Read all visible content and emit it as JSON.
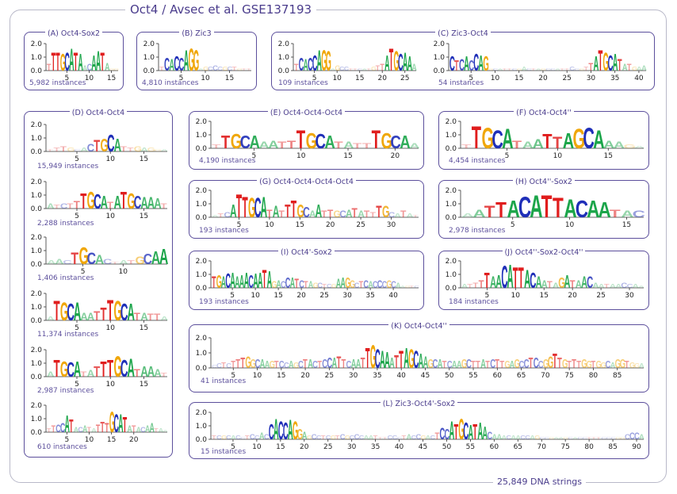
{
  "title": "Oct4 / Avsec et al. GSE137193",
  "footer": "25,849 DNA strings",
  "colors": {
    "A": "#1ca54a",
    "C": "#1f2fb8",
    "G": "#f0a70a",
    "T": "#e01d1d",
    "frame": "#5c4f9c",
    "text": "#4a3c8c"
  },
  "y_ticks": [
    "2.0",
    "1.0",
    "0.0"
  ],
  "panels": [
    {
      "title": "(A) Oct4-Sox2",
      "logos": [
        {
          "instances": "5,982 instances",
          "ticks": [
            "5",
            "10",
            "15"
          ],
          "length": 16,
          "seq": "TTTGCATAACAATAGG",
          "heights": [
            0.5,
            1.4,
            1.4,
            1.3,
            1.4,
            1.7,
            1.4,
            1.3,
            0.4,
            0.5,
            1.2,
            1.5,
            1.4,
            0.6,
            0.2,
            0.2
          ]
        }
      ]
    },
    {
      "title": "(B) Zic3",
      "logos": [
        {
          "instances": "4,810 instances",
          "ticks": [
            "5",
            "10",
            "15"
          ],
          "length": 19,
          "seq": "TCACCAGGAGCCCGCTGTT",
          "heights": [
            0.3,
            1.0,
            0.9,
            1.1,
            1.0,
            1.6,
            1.7,
            1.6,
            0.2,
            0.3,
            0.3,
            0.4,
            0.3,
            0.3,
            0.3,
            0.3,
            0.2,
            0.2,
            0.2
          ]
        }
      ]
    },
    {
      "title": "(C) Zic3-Oct4",
      "logos": [
        {
          "instances": "109 instances",
          "ticks": [
            "5",
            "10",
            "15",
            "20",
            "25"
          ],
          "length": 27,
          "seq": "TCACCAGGAGCCTTCATGTTATGCAAA",
          "heights": [
            0.5,
            1.0,
            0.9,
            1.0,
            1.2,
            1.6,
            1.6,
            1.5,
            0.2,
            0.4,
            0.3,
            0.3,
            0.2,
            0.2,
            0.2,
            0.2,
            0.2,
            0.3,
            0.4,
            0.5,
            1.2,
            1.7,
            1.5,
            1.3,
            1.4,
            1.1,
            0.5
          ]
        },
        {
          "instances": "54 instances",
          "ticks": [
            "5",
            "10",
            "15",
            "20",
            "25",
            "30",
            "35",
            "40"
          ],
          "length": 41,
          "seq": "CTCACCAGGCATTCGACTAGCCATTCCGTTATGCATATGAA",
          "heights": [
            1.1,
            0.8,
            0.9,
            1.1,
            0.8,
            1.3,
            1.2,
            1.1,
            0.2,
            0.2,
            0.2,
            0.2,
            0.2,
            0.2,
            0.2,
            0.3,
            0.2,
            0.2,
            0.2,
            0.2,
            0.2,
            0.2,
            0.2,
            0.2,
            0.2,
            0.3,
            0.2,
            0.2,
            0.3,
            0.6,
            1.1,
            1.6,
            1.4,
            1.2,
            1.3,
            0.9,
            0.5,
            0.5,
            0.3,
            0.3,
            0.4
          ]
        }
      ]
    },
    {
      "title": "(D) Oct4-Oct4",
      "logos": [
        {
          "instances": "15,949 instances",
          "ticks": [
            "5",
            "10",
            "15"
          ],
          "length": 18,
          "seq": "TTTGCACTGCATTGAGGA",
          "heights": [
            0.2,
            0.3,
            0.4,
            0.3,
            0.2,
            0.3,
            0.6,
            0.9,
            1.0,
            1.3,
            1.0,
            0.4,
            0.3,
            0.4,
            0.3,
            0.3,
            0.2,
            0.2
          ]
        },
        {
          "instances": "2,288 instances",
          "ticks": [
            "5",
            "10",
            "15"
          ],
          "length": 18,
          "seq": "ATCTTTGCATATGCAAAT",
          "heights": [
            0.4,
            0.3,
            0.4,
            0.4,
            0.6,
            1.2,
            1.3,
            1.1,
            1.0,
            0.5,
            1.0,
            1.3,
            1.2,
            1.0,
            0.9,
            0.9,
            0.8,
            0.4
          ]
        },
        {
          "instances": "1,406 instances",
          "ticks": [
            "5",
            "10"
          ],
          "length": 15,
          "seq": "AACTGCACTATGCAA",
          "heights": [
            0.3,
            0.4,
            0.3,
            0.9,
            1.3,
            0.9,
            0.7,
            0.4,
            0.2,
            0.3,
            0.3,
            0.6,
            0.8,
            1.0,
            1.2
          ]
        },
        {
          "instances": "11,374 instances",
          "ticks": [
            "5",
            "10",
            "15"
          ],
          "length": 18,
          "seq": "ATGCAAATTTGCATATTA",
          "heights": [
            0.3,
            1.5,
            1.4,
            1.3,
            1.4,
            0.6,
            0.6,
            0.7,
            1.0,
            1.6,
            1.5,
            1.3,
            1.3,
            0.6,
            0.6,
            0.5,
            0.5,
            0.3
          ]
        },
        {
          "instances": "2,987 instances",
          "ticks": [
            "5",
            "10",
            "15"
          ],
          "length": 18,
          "seq": "ATGCATATTTGCATAAAT",
          "heights": [
            0.4,
            1.3,
            1.2,
            1.1,
            1.2,
            0.4,
            0.5,
            0.8,
            1.2,
            1.3,
            1.6,
            1.3,
            1.4,
            0.6,
            0.8,
            0.8,
            0.6,
            0.3
          ]
        },
        {
          "instances": "610 instances",
          "ticks": [
            "5",
            "10",
            "15",
            "20"
          ],
          "length": 27,
          "seq": "TTCCATACATATTTGCATATACAATAA",
          "heights": [
            0.3,
            0.5,
            0.6,
            0.7,
            1.3,
            1.0,
            0.4,
            0.4,
            0.5,
            0.4,
            0.3,
            0.6,
            0.8,
            0.7,
            1.6,
            1.4,
            1.4,
            1.2,
            0.5,
            0.5,
            0.4,
            0.4,
            0.5,
            0.7,
            0.3,
            0.3,
            0.2
          ]
        }
      ]
    },
    {
      "title": "(E) Oct4-Oct4-Oct4",
      "logos": [
        {
          "instances": "4,190 instances",
          "ticks": [
            "5",
            "10",
            "15",
            "20"
          ],
          "length": 22,
          "seq": "TTGCAAATTTGCATATTTGCAA",
          "heights": [
            0.3,
            1.0,
            1.1,
            1.0,
            1.0,
            0.5,
            0.6,
            0.5,
            0.6,
            1.4,
            1.2,
            1.1,
            1.0,
            0.5,
            0.5,
            0.4,
            0.4,
            1.4,
            1.2,
            1.0,
            1.0,
            0.4
          ]
        }
      ]
    },
    {
      "title": "(F) Oct4-Oct4''",
      "logos": [
        {
          "instances": "4,454 instances",
          "ticks": [
            "5",
            "10",
            "15"
          ],
          "length": 18,
          "seq": "TTGCATAATTAGCAAAGA",
          "heights": [
            0.3,
            1.7,
            1.6,
            1.4,
            1.5,
            0.6,
            0.5,
            0.7,
            1.1,
            0.9,
            1.2,
            1.5,
            1.6,
            1.4,
            0.6,
            0.5,
            0.3,
            0.2
          ]
        }
      ]
    },
    {
      "title": "(G) Oct4-Oct4-Oct4-Oct4",
      "logos": [
        {
          "instances": "193 instances",
          "ticks": [
            "5",
            "10",
            "15",
            "20",
            "25",
            "30"
          ],
          "length": 34,
          "seq": "ATCATTGCATATTTGCAATTGCATATTTGCATAT",
          "heights": [
            0.2,
            0.3,
            0.4,
            1.0,
            1.8,
            1.6,
            1.5,
            1.5,
            1.6,
            0.6,
            0.9,
            0.5,
            1.0,
            1.3,
            1.0,
            0.8,
            0.5,
            1.0,
            0.5,
            0.6,
            0.5,
            0.5,
            0.6,
            0.7,
            0.5,
            0.5,
            0.4,
            0.9,
            0.9,
            0.4,
            0.3,
            0.5,
            0.3,
            0.2
          ]
        }
      ]
    },
    {
      "title": "(H) Oct4''-Sox2",
      "logos": [
        {
          "instances": "2,978 instances",
          "ticks": [
            "5",
            "10",
            "15"
          ],
          "length": 16,
          "seq": "AATTACATTACAATAC",
          "heights": [
            0.3,
            0.6,
            0.9,
            1.2,
            1.3,
            1.6,
            1.7,
            1.7,
            1.5,
            1.4,
            1.3,
            1.3,
            1.2,
            0.6,
            0.5,
            0.5
          ]
        }
      ]
    },
    {
      "title": "(I) Oct4'-Sox2",
      "logos": [
        {
          "instances": "193 instances",
          "ticks": [
            "5",
            "10",
            "15",
            "20",
            "25",
            "30",
            "35",
            "40"
          ],
          "length": 45,
          "seq": "TGACAAAACAATAGACCATCTAGCTCGAAGGCTCACCCGCAAGTC",
          "heights": [
            0.9,
            1.0,
            0.9,
            1.1,
            1.2,
            0.9,
            1.0,
            1.2,
            1.0,
            1.1,
            1.2,
            1.4,
            1.3,
            0.5,
            0.6,
            0.5,
            0.8,
            0.8,
            0.7,
            0.6,
            0.5,
            0.5,
            0.4,
            0.4,
            0.3,
            0.3,
            0.3,
            0.7,
            0.8,
            0.8,
            0.6,
            0.4,
            0.5,
            0.6,
            0.5,
            0.5,
            0.6,
            0.5,
            0.6,
            0.5,
            0.4,
            0.2,
            0.2,
            0.2,
            0.2
          ]
        }
      ]
    },
    {
      "title": "(J) Oct4''-Sox2-Oct4''",
      "logos": [
        {
          "instances": "184 instances",
          "ticks": [
            "5",
            "10",
            "15",
            "20",
            "25",
            "30"
          ],
          "length": 32,
          "seq": "ATTTTAACATTACAATAGATAACAATAACCAA",
          "heights": [
            0.3,
            0.3,
            0.4,
            0.6,
            1.2,
            0.9,
            1.0,
            1.7,
            1.8,
            1.6,
            1.6,
            1.4,
            1.2,
            0.9,
            0.6,
            0.5,
            0.4,
            0.8,
            1.0,
            0.6,
            0.6,
            0.9,
            0.9,
            0.4,
            0.3,
            0.3,
            0.3,
            0.3,
            0.4,
            0.3,
            0.3,
            0.2
          ]
        }
      ]
    },
    {
      "title": "(K) Oct4-Oct4''",
      "logos": [
        {
          "instances": "41 instances",
          "ticks": [
            "5",
            "10",
            "15",
            "20",
            "25",
            "30",
            "35",
            "40",
            "45",
            "50",
            "55",
            "60",
            "65",
            "70",
            "75",
            "80",
            "85"
          ],
          "length": 90,
          "seq": "CCTCTTTGGCAAGTCCAGCTACTCCATTCAATTGCAAATTAGCAAGCATCAAGCTTATCTTGAGCCTCCGGTTGTTTGGTGGCAGGTGG",
          "heights": [
            0.2,
            0.3,
            0.4,
            0.3,
            0.5,
            0.6,
            0.7,
            0.8,
            0.6,
            0.6,
            0.6,
            0.5,
            0.5,
            0.5,
            0.5,
            0.4,
            0.5,
            0.4,
            0.5,
            0.6,
            0.6,
            0.5,
            0.5,
            0.6,
            0.7,
            0.7,
            0.8,
            0.6,
            0.5,
            0.6,
            0.6,
            0.7,
            1.4,
            1.6,
            1.3,
            1.2,
            1.1,
            0.7,
            0.9,
            1.2,
            1.4,
            1.3,
            1.2,
            1.0,
            0.8,
            0.6,
            0.6,
            0.6,
            0.5,
            0.5,
            0.5,
            0.5,
            0.6,
            0.6,
            0.5,
            0.5,
            0.6,
            0.5,
            0.6,
            0.6,
            0.5,
            0.5,
            0.5,
            0.6,
            0.5,
            0.6,
            0.7,
            0.7,
            0.5,
            0.6,
            0.8,
            1.0,
            0.7,
            0.6,
            0.5,
            0.6,
            0.5,
            0.6,
            0.5,
            0.5,
            0.5,
            0.4,
            0.5,
            0.4,
            0.6,
            0.6,
            0.5,
            0.4,
            0.3,
            0.3
          ]
        }
      ]
    },
    {
      "title": "(L) Zic3-Oct4'-Sox2",
      "logos": [
        {
          "instances": "15 instances",
          "ticks": [
            "5",
            "10",
            "15",
            "20",
            "25",
            "30",
            "35",
            "40",
            "45",
            "50",
            "55",
            "60",
            "65",
            "70",
            "75",
            "80",
            "85",
            "90"
          ],
          "length": 91,
          "seq": "TCGCACCTCCACCACCAGGAGCCTCGTCGCCCAATTTCCCTACCGACTCCATGCATAACAAACAACCAGCCGAAGCACCTTTCCCGGCCC",
          "heights": [
            0.3,
            0.3,
            0.3,
            0.3,
            0.3,
            0.3,
            0.2,
            0.3,
            0.4,
            0.3,
            0.5,
            0.4,
            1.2,
            1.6,
            1.4,
            1.3,
            1.5,
            1.4,
            0.8,
            0.6,
            0.3,
            0.4,
            0.3,
            0.3,
            0.3,
            0.3,
            0.3,
            0.4,
            0.3,
            0.3,
            0.4,
            0.3,
            0.3,
            0.3,
            0.3,
            0.2,
            0.2,
            0.3,
            0.3,
            0.2,
            0.3,
            0.4,
            0.3,
            0.4,
            0.3,
            0.3,
            0.3,
            0.5,
            0.9,
            0.8,
            1.4,
            1.2,
            1.6,
            1.3,
            1.1,
            1.2,
            1.3,
            1.0,
            0.6,
            0.4,
            0.4,
            0.3,
            0.3,
            0.3,
            0.3,
            0.3,
            0.3,
            0.3,
            0.3,
            0.2,
            0.2,
            0.2,
            0.2,
            0.2,
            0.2,
            0.2,
            0.2,
            0.2,
            0.2,
            0.2,
            0.2,
            0.2,
            0.2,
            0.2,
            0.2,
            0.2,
            0.2,
            0.4,
            0.5,
            0.5,
            0.4
          ]
        }
      ]
    }
  ]
}
